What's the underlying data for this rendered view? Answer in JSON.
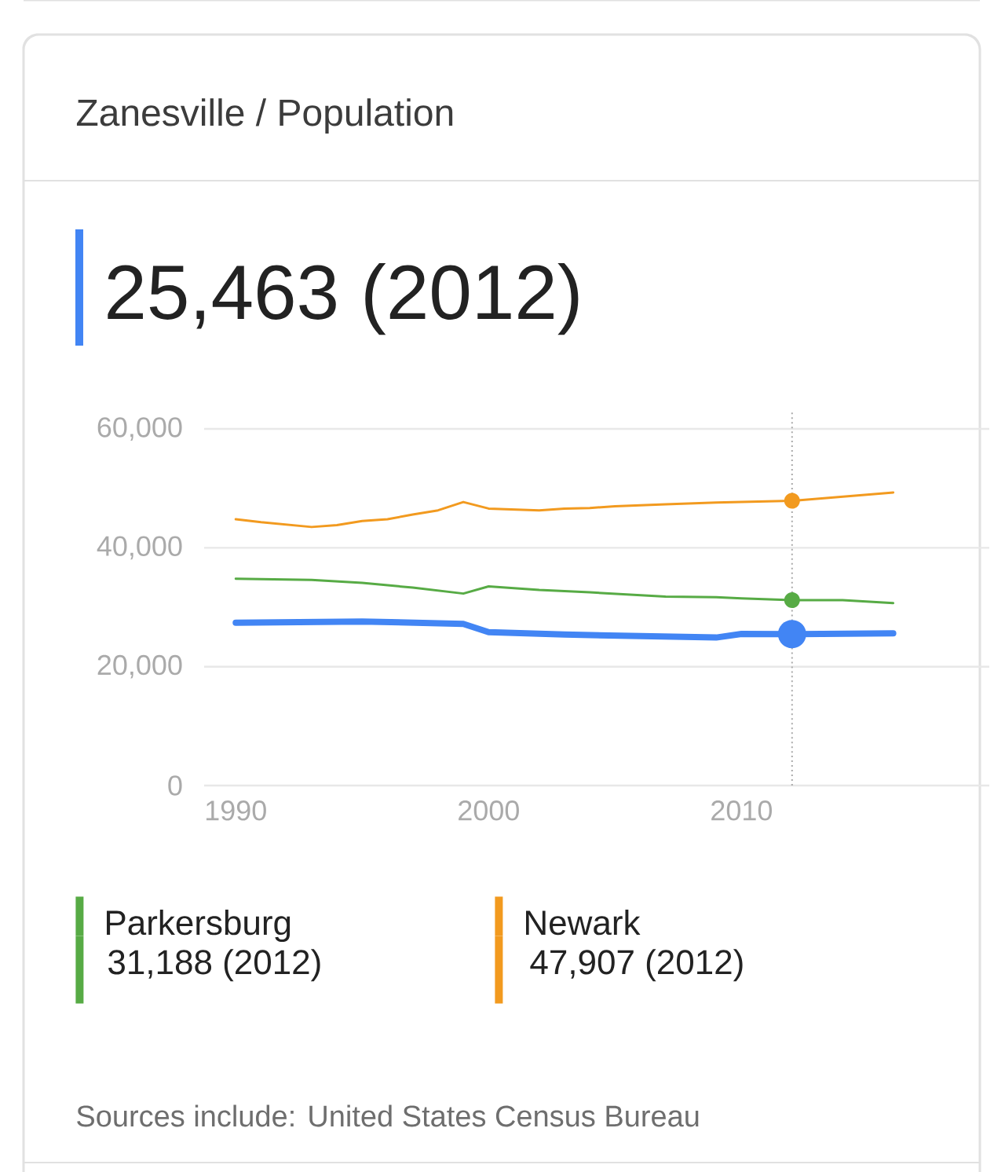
{
  "chart_data": {
    "type": "line",
    "title": "Zanesville / Population",
    "xlim": [
      1988.75,
      2019.8
    ],
    "xticks": [
      1990,
      2000,
      2010
    ],
    "ylim": [
      0,
      60000
    ],
    "yticks": [
      {
        "value": 0,
        "label": "0"
      },
      {
        "value": 20000,
        "label": "20,000"
      },
      {
        "value": 40000,
        "label": "40,000"
      },
      {
        "value": 60000,
        "label": "60,000"
      }
    ],
    "grid": "y",
    "legend": "bottom",
    "series": [
      {
        "name": null,
        "color": "#4285f4",
        "x": [
          1990,
          1995,
          1999,
          2000,
          2003,
          2009,
          2010,
          2012,
          2016
        ],
        "values": [
          27400,
          27600,
          27200,
          25800,
          25400,
          24900,
          25500,
          25463,
          25600
        ]
      },
      {
        "name": "Parkersburg",
        "color": "#57ab45",
        "x": [
          1990,
          1993,
          1995,
          1997,
          1999,
          2000,
          2002,
          2004,
          2007,
          2009,
          2010,
          2012,
          2014,
          2016
        ],
        "values": [
          34800,
          34600,
          34100,
          33300,
          32300,
          33500,
          32900,
          32500,
          31800,
          31700,
          31500,
          31188,
          31200,
          30700
        ]
      },
      {
        "name": "Newark",
        "color": "#f29a1f",
        "x": [
          1990,
          1991,
          1993,
          1994,
          1995,
          1996,
          1997,
          1998,
          1999,
          2000,
          2002,
          2003,
          2004,
          2005,
          2007,
          2009,
          2012,
          2016
        ],
        "values": [
          44800,
          44300,
          43500,
          43800,
          44500,
          44800,
          45600,
          46300,
          47700,
          46600,
          46300,
          46600,
          46700,
          47000,
          47300,
          47600,
          47907,
          49300
        ]
      }
    ],
    "ref_lines": [
      {
        "axis": "x",
        "value": 2012,
        "color": "#aaaaaa",
        "line_style": "dotted"
      }
    ],
    "annotations": [
      "25,463 (2012)",
      "31,188 (2012)",
      "47,907 (2012)",
      "Sources include: United States Census Bureau"
    ]
  }
}
